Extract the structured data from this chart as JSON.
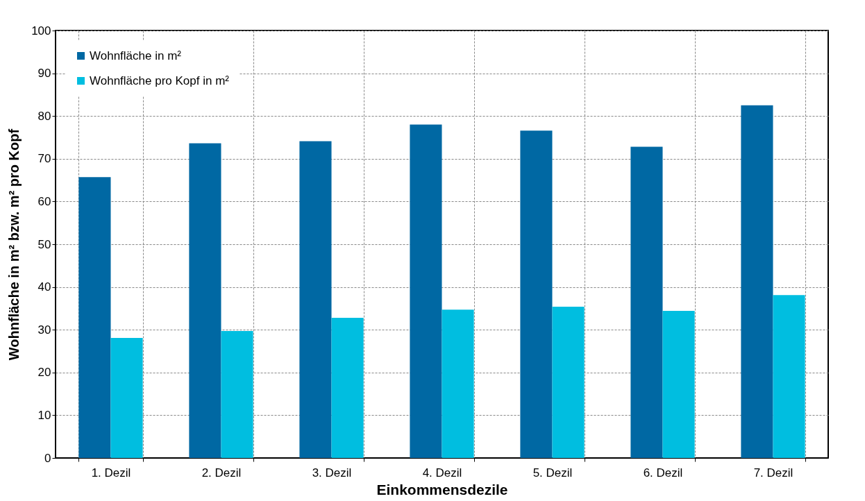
{
  "chart_data": {
    "type": "bar",
    "xlabel": "Einkommensdezile",
    "ylabel": "Wohnfläche in m² bzw. m² pro Kopf",
    "categories": [
      "1. Dezil",
      "2. Dezil",
      "3. Dezil",
      "4. Dezil",
      "5. Dezil",
      "6. Dezil",
      "7. Dezil"
    ],
    "series": [
      {
        "name": "Wohnfläche in m²",
        "color": "#0068a3",
        "values": [
          65.7,
          73.6,
          74.1,
          78.0,
          76.6,
          72.8,
          82.5
        ]
      },
      {
        "name": "Wohnfläche pro Kopf in m²",
        "color": "#00bee0",
        "values": [
          28.1,
          29.7,
          32.8,
          34.7,
          35.4,
          34.4,
          38.1
        ]
      }
    ],
    "ylim": [
      0,
      100
    ],
    "yticks": [
      0,
      10,
      20,
      30,
      40,
      50,
      60,
      70,
      80,
      90,
      100
    ],
    "grid": true,
    "legend": "top left"
  }
}
